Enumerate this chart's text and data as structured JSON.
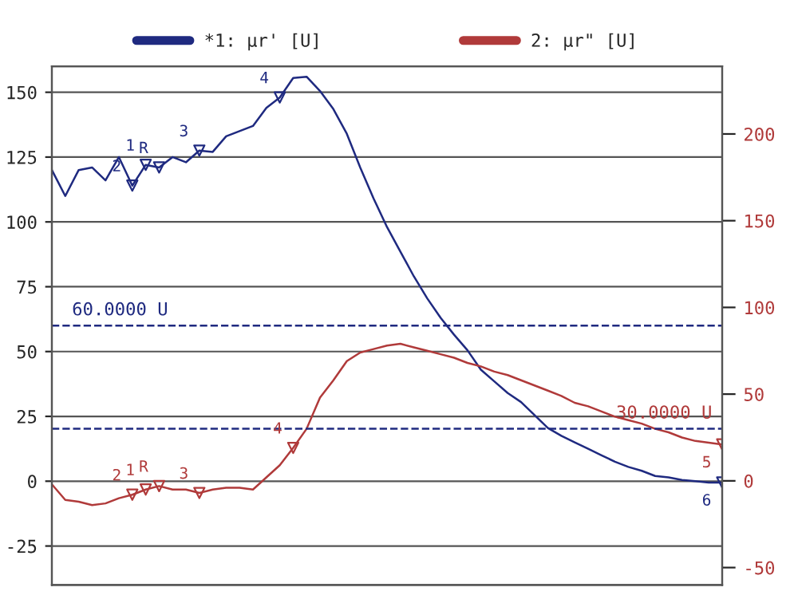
{
  "chart_data": {
    "type": "line",
    "categories": [
      null,
      null,
      null,
      null,
      null,
      null,
      null,
      null,
      null,
      null,
      null,
      null,
      null,
      null,
      null,
      null,
      null,
      null,
      null,
      null,
      null,
      null,
      null,
      null,
      null,
      null,
      null,
      null,
      null,
      null,
      null,
      null,
      null,
      null,
      null,
      null,
      null,
      null,
      null,
      null,
      null,
      null,
      null,
      null,
      null,
      null,
      null,
      null,
      null,
      null,
      null
    ],
    "ylim": [
      -40,
      160
    ],
    "yticks": [
      -25,
      0,
      25,
      50,
      75,
      100,
      125,
      150
    ],
    "y2lim": [
      -60,
      239
    ],
    "y2ticks": [
      -50,
      0,
      50,
      100,
      150,
      200
    ],
    "grid": "y",
    "legend": "top",
    "series": [
      {
        "name": "*1: μr' [U]",
        "color": "#1f2a80",
        "values": [
          120,
          110,
          120,
          121,
          116,
          125,
          114,
          122,
          121,
          125,
          123,
          127.5,
          127,
          133,
          135,
          137,
          144,
          148,
          155.5,
          156,
          150.5,
          143.5,
          134,
          121,
          109,
          98,
          88.5,
          79,
          70.5,
          63,
          56.5,
          50.5,
          43,
          38.5,
          34,
          30.5,
          25.5,
          20.5,
          17.5,
          15,
          12.5,
          10,
          7.5,
          5.5,
          4,
          2,
          1.5,
          0.5,
          0,
          -0.5,
          -0.5
        ]
      },
      {
        "name": "2: μr\" [U]",
        "color": "#b03a3a",
        "axis": "y2",
        "values": [
          -2,
          -11,
          -12,
          -14,
          -13,
          -10,
          -8,
          -5,
          -3,
          -5,
          -5,
          -7,
          -5,
          -4,
          -4,
          -5,
          2,
          9,
          19,
          30,
          48,
          58,
          69,
          74,
          76,
          78,
          79,
          77,
          75,
          73,
          71,
          68,
          66,
          63,
          61,
          58,
          55,
          52,
          49,
          45,
          43,
          40,
          37,
          35,
          33,
          30,
          28,
          25,
          23,
          22,
          21
        ]
      },
      {
        "type": "scatter",
        "marker": "triangle",
        "color": "#1f2a80",
        "values": [
          null,
          null,
          null,
          null,
          null,
          null,
          114,
          122,
          121,
          null,
          null,
          127.5,
          null,
          null,
          null,
          null,
          null,
          148,
          null,
          null,
          null,
          null,
          null,
          null,
          null,
          null,
          null,
          null,
          null,
          null,
          null,
          null,
          null,
          null,
          null,
          null,
          null,
          null,
          null,
          null,
          null,
          null,
          null,
          null,
          null,
          null,
          null,
          null,
          null,
          null,
          -0.5
        ]
      },
      {
        "type": "scatter",
        "marker": "triangle",
        "color": "#b03a3a",
        "axis": "y2",
        "values": [
          null,
          null,
          null,
          null,
          null,
          null,
          -8,
          -5,
          -3,
          null,
          null,
          -7,
          null,
          null,
          null,
          null,
          null,
          null,
          19,
          null,
          null,
          null,
          null,
          null,
          null,
          null,
          null,
          null,
          null,
          null,
          null,
          null,
          null,
          null,
          null,
          null,
          null,
          null,
          null,
          null,
          null,
          null,
          null,
          null,
          null,
          null,
          null,
          null,
          null,
          null,
          21
        ]
      }
    ],
    "annotations": [
      "2",
      "1",
      "R",
      "3",
      "4",
      "6",
      "2",
      "1",
      "R",
      "3",
      "4",
      "5"
    ],
    "ref_lines": [
      {
        "axis": "y",
        "value": 60,
        "label": "60.0000 U",
        "color": "#1f2a80",
        "line_style": "dashed"
      },
      {
        "axis": "y2",
        "value": 30,
        "label": "30.0000 U",
        "color": "#1f2a80",
        "line_style": "dashed"
      }
    ]
  }
}
